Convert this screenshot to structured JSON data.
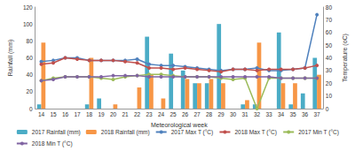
{
  "chart_data": {
    "type": "bar",
    "x_label": "Meteorological week",
    "y_label": "Rainfall (mm)",
    "y2_label": "Temperature (oC)",
    "categories": [
      "14",
      "15",
      "16",
      "17",
      "18",
      "19",
      "20",
      "21",
      "22",
      "23",
      "24",
      "25",
      "26",
      "27",
      "28",
      "29",
      "30",
      "31",
      "32",
      "33",
      "34",
      "35",
      "36",
      "37"
    ],
    "ylim": [
      0,
      120
    ],
    "yticks": [
      0,
      20,
      40,
      60,
      80,
      100,
      120
    ],
    "y2lim": [
      0,
      80
    ],
    "y2ticks": [
      0,
      10,
      20,
      30,
      40,
      50,
      60,
      70,
      80
    ],
    "grid": false,
    "legend": "bottom",
    "series": [
      {
        "name": "2017 Rainfall (mm)",
        "type": "bar",
        "color": "#4bacc6",
        "values": [
          5,
          0,
          0,
          0,
          5,
          12,
          0,
          0,
          0,
          85,
          0,
          65,
          45,
          30,
          30,
          100,
          0,
          5,
          5,
          0,
          90,
          5,
          18,
          60
        ]
      },
      {
        "name": "2018 Rainfall (mm)",
        "type": "bar",
        "color": "#f79646",
        "values": [
          78,
          0,
          0,
          0,
          60,
          0,
          5,
          0,
          25,
          40,
          12,
          0,
          35,
          30,
          35,
          30,
          0,
          10,
          78,
          0,
          30,
          30,
          0,
          40
        ]
      },
      {
        "name": "2017 Max T (°C)",
        "type": "line",
        "axis": "y2",
        "marker": "circle",
        "color": "#4f81bd",
        "values": [
          37,
          38,
          40,
          40,
          38,
          38,
          38,
          38,
          39,
          35,
          34,
          34,
          33,
          32,
          31,
          30,
          31,
          31,
          32,
          30,
          30,
          31,
          32,
          74
        ]
      },
      {
        "name": "2018 Max T (°C)",
        "type": "line",
        "axis": "y2",
        "marker": "circle",
        "color": "#c0504d",
        "values": [
          35,
          36,
          40,
          39,
          38,
          38,
          38,
          37,
          36,
          32,
          32,
          31,
          32,
          31,
          30,
          29,
          31,
          31,
          30,
          31,
          31,
          31,
          32,
          34
        ]
      },
      {
        "name": "2017 Min T (°C)",
        "type": "line",
        "axis": "y2",
        "marker": "circle",
        "color": "#9bbb59",
        "values": [
          22,
          24,
          25,
          25,
          25,
          24,
          23,
          25,
          26,
          27,
          27,
          26,
          25,
          25,
          25,
          24,
          23,
          24,
          0,
          24,
          24,
          24,
          24,
          24
        ]
      },
      {
        "name": "2018 Min T (°C)",
        "type": "line",
        "axis": "y2",
        "marker": "circle",
        "color": "#8064a2",
        "values": [
          22,
          23,
          25,
          25,
          25,
          25,
          26,
          26,
          26,
          25,
          25,
          25,
          25,
          25,
          25,
          25,
          25,
          25,
          25,
          25,
          24,
          24,
          24,
          24
        ]
      }
    ]
  }
}
